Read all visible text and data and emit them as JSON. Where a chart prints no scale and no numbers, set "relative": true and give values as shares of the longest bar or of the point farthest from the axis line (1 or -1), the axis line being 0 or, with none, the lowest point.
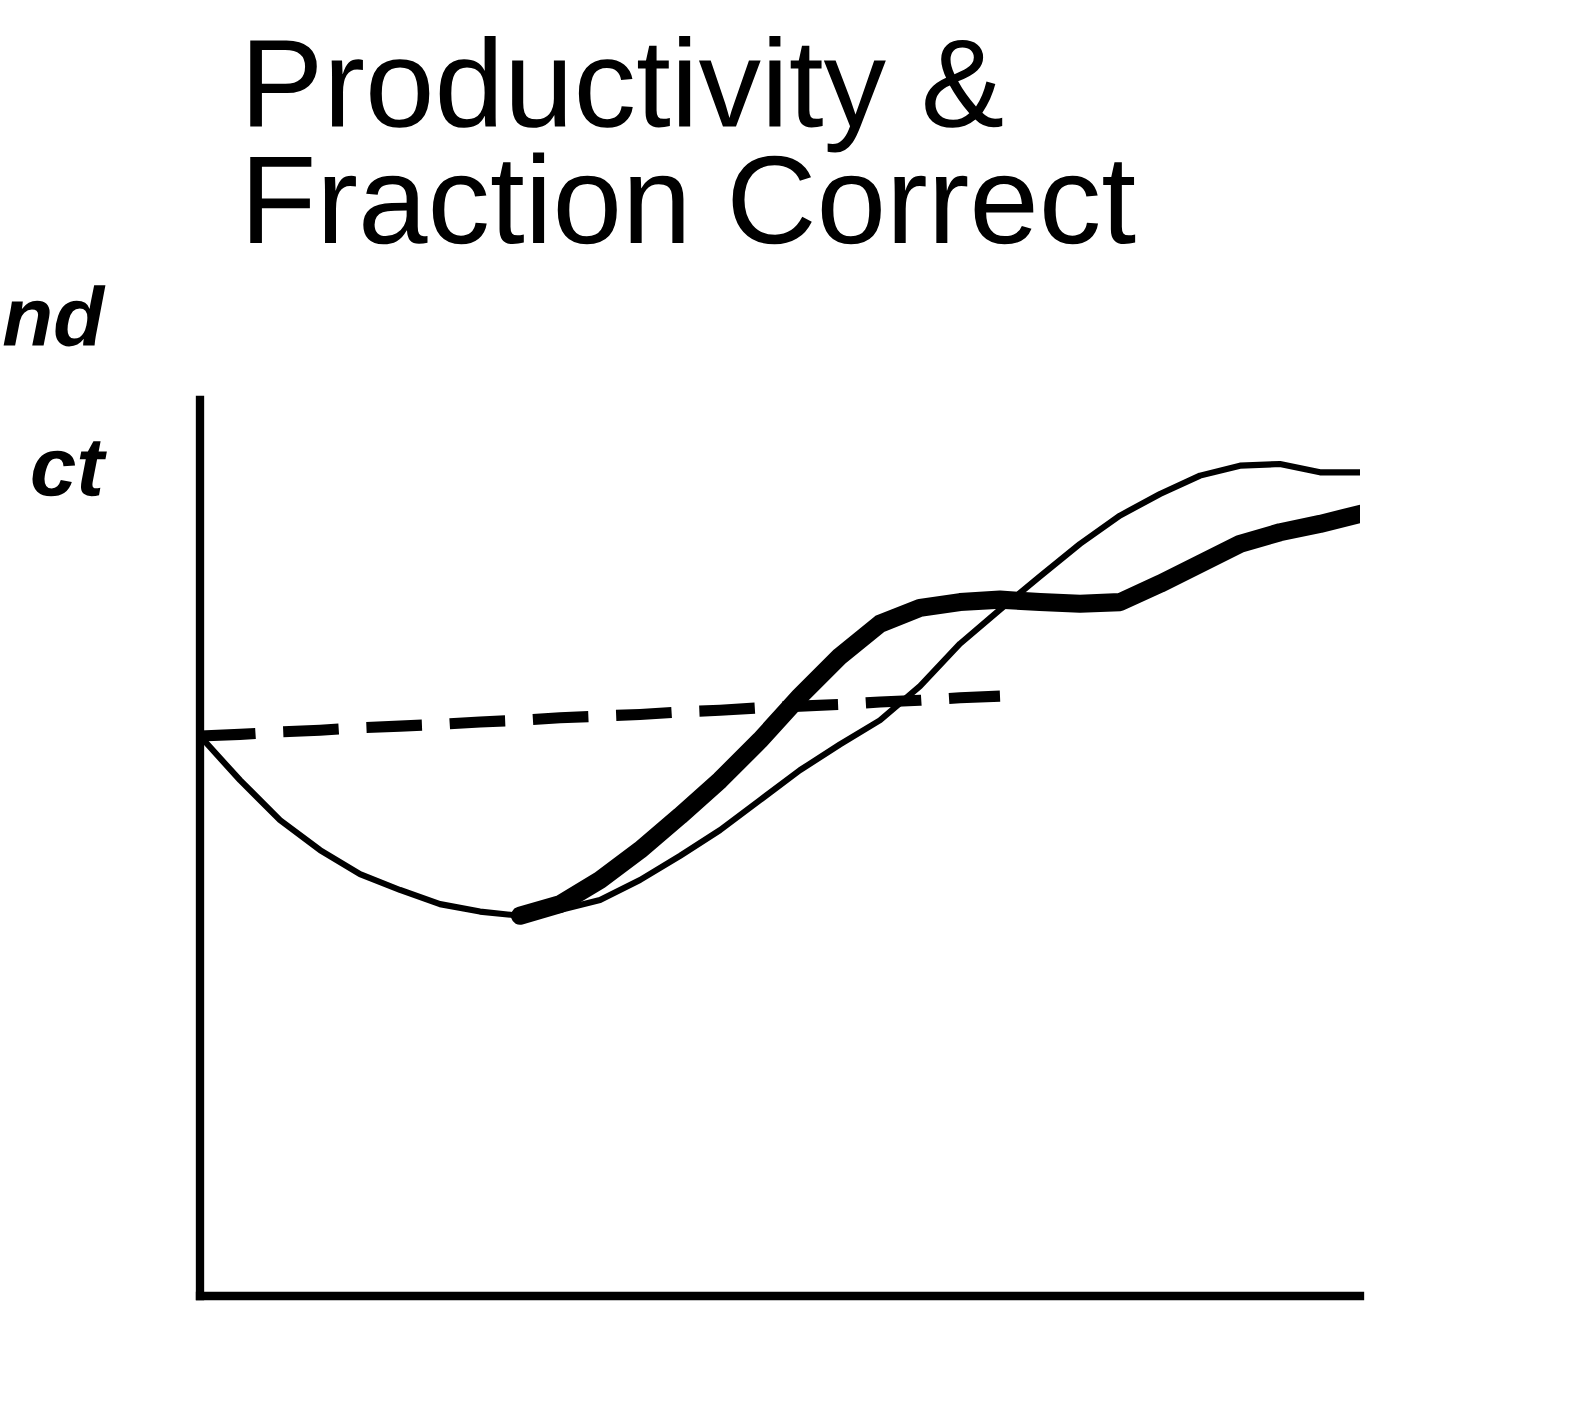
{
  "chart_data": {
    "type": "line",
    "title": "Productivity &\nFraction Correct",
    "relative": true,
    "grid": false,
    "legend": false,
    "annotations": [
      "nd",
      "ct"
    ],
    "categories": [
      null,
      null,
      null,
      null,
      null,
      null,
      null,
      null,
      null,
      null,
      null,
      null,
      null,
      null,
      null,
      null,
      null,
      null,
      null,
      null,
      null,
      null,
      null,
      null,
      null,
      null,
      null,
      null,
      null,
      null
    ],
    "series": [
      {
        "color": "#000000",
        "line_style": "solid",
        "values": [
          0.673,
          0.62,
          0.572,
          0.536,
          0.507,
          0.488,
          0.471,
          0.462,
          0.457,
          0.464,
          0.476,
          0.5,
          0.529,
          0.56,
          0.596,
          0.632,
          0.663,
          0.692,
          0.733,
          0.784,
          0.825,
          0.865,
          0.904,
          0.938,
          0.964,
          0.986,
          0.998,
          1.0,
          0.99,
          0.99
        ]
      },
      {
        "color": "#000000",
        "line_style": "solid",
        "values": [
          null,
          null,
          null,
          null,
          null,
          null,
          null,
          null,
          0.457,
          0.471,
          0.5,
          0.536,
          0.577,
          0.62,
          0.668,
          0.721,
          0.769,
          0.808,
          0.827,
          0.834,
          0.837,
          0.834,
          0.832,
          0.834,
          0.856,
          0.88,
          0.904,
          0.918,
          0.928,
          0.94
        ]
      },
      {
        "color": "#000000",
        "line_style": "dashed",
        "values": [
          0.673,
          0.675,
          0.678,
          0.68,
          0.683,
          0.685,
          0.687,
          0.69,
          0.692,
          0.695,
          0.697,
          0.699,
          0.702,
          0.704,
          0.707,
          0.709,
          0.711,
          0.714,
          0.716,
          0.719,
          0.721,
          null,
          null,
          null,
          null,
          null,
          null,
          null,
          null,
          null
        ]
      }
    ]
  }
}
